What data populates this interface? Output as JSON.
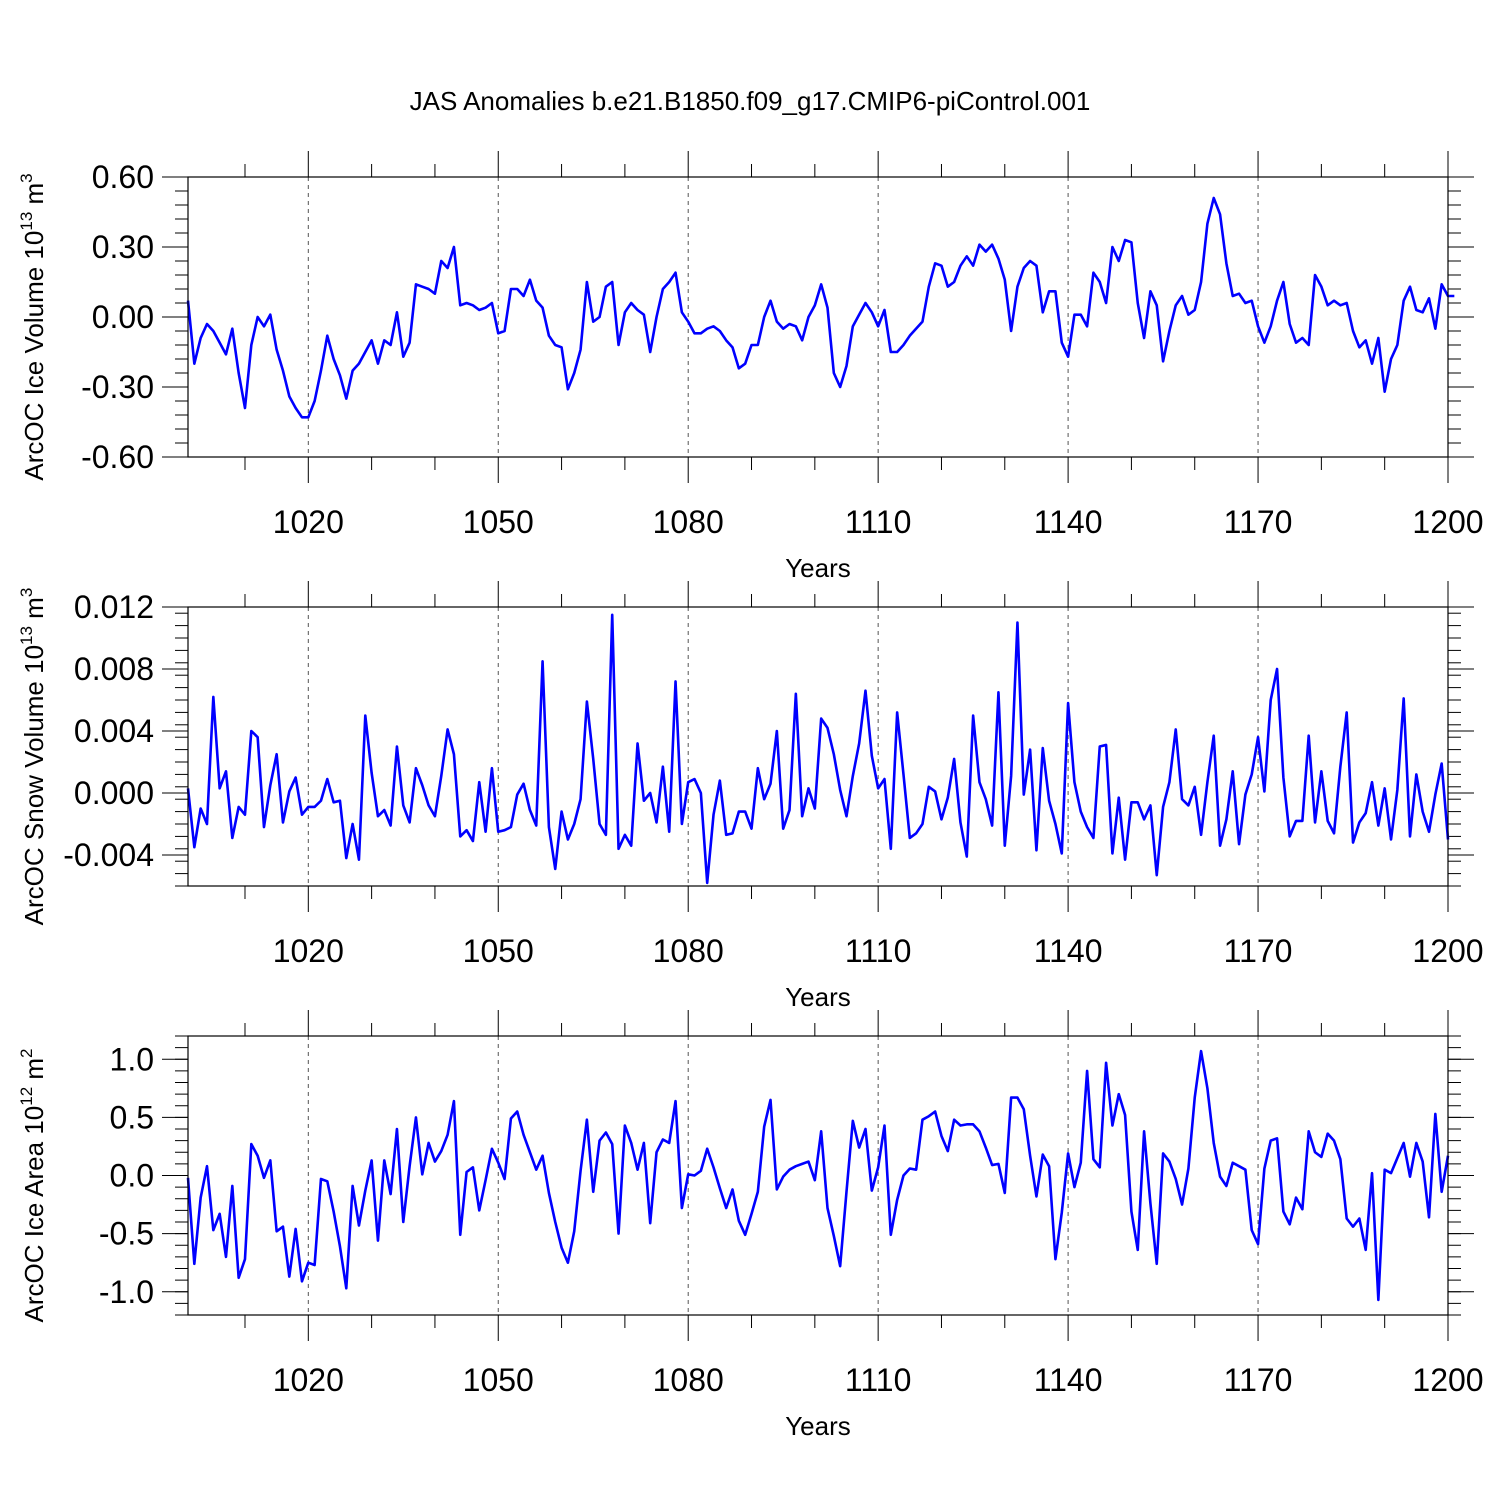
{
  "title": "JAS Anomalies b.e21.B1850.f09_g17.CMIP6-piControl.001",
  "colors": {
    "line": "#0000ff",
    "axis": "#000000",
    "grid": "#555555",
    "background": "#ffffff"
  },
  "chart_data": [
    {
      "type": "line",
      "name": "ice-volume",
      "ylabel_main": "ArcOC Ice Volume 10",
      "ylabel_exp": "13",
      "ylabel_unit": "m",
      "ylabel_unit_exp": "3",
      "xlabel": "Years",
      "xlim": [
        1001,
        1200
      ],
      "ylim": [
        -0.6,
        0.6
      ],
      "xticks": [
        1020,
        1050,
        1080,
        1110,
        1140,
        1170,
        1200
      ],
      "yticks": [
        -0.6,
        -0.3,
        0.0,
        0.3,
        0.6
      ],
      "ytick_labels": [
        "-0.60",
        "-0.30",
        "0.00",
        "0.30",
        "0.60"
      ],
      "grid_x": [
        1020,
        1050,
        1080,
        1110,
        1140,
        1170
      ],
      "x_start": 1001,
      "values": [
        0.07,
        -0.2,
        -0.09,
        -0.03,
        -0.06,
        -0.11,
        -0.16,
        -0.05,
        -0.24,
        -0.39,
        -0.12,
        0.0,
        -0.04,
        0.01,
        -0.14,
        -0.23,
        -0.34,
        -0.39,
        -0.43,
        -0.43,
        -0.36,
        -0.23,
        -0.08,
        -0.18,
        -0.25,
        -0.35,
        -0.23,
        -0.2,
        -0.15,
        -0.1,
        -0.2,
        -0.1,
        -0.12,
        0.02,
        -0.17,
        -0.11,
        0.14,
        0.13,
        0.12,
        0.1,
        0.24,
        0.21,
        0.3,
        0.05,
        0.06,
        0.05,
        0.03,
        0.04,
        0.06,
        -0.07,
        -0.06,
        0.12,
        0.12,
        0.09,
        0.16,
        0.07,
        0.04,
        -0.08,
        -0.12,
        -0.13,
        -0.31,
        -0.24,
        -0.14,
        0.15,
        -0.02,
        0.0,
        0.13,
        0.15,
        -0.12,
        0.02,
        0.06,
        0.03,
        0.01,
        -0.15,
        0.0,
        0.12,
        0.15,
        0.19,
        0.02,
        -0.02,
        -0.07,
        -0.07,
        -0.05,
        -0.04,
        -0.06,
        -0.1,
        -0.13,
        -0.22,
        -0.2,
        -0.12,
        -0.12,
        0.0,
        0.07,
        -0.02,
        -0.05,
        -0.03,
        -0.04,
        -0.1,
        0.0,
        0.05,
        0.14,
        0.04,
        -0.24,
        -0.3,
        -0.21,
        -0.04,
        0.01,
        0.06,
        0.02,
        -0.04,
        0.03,
        -0.15,
        -0.15,
        -0.12,
        -0.08,
        -0.05,
        -0.02,
        0.13,
        0.23,
        0.22,
        0.13,
        0.15,
        0.22,
        0.26,
        0.22,
        0.31,
        0.28,
        0.31,
        0.25,
        0.16,
        -0.06,
        0.13,
        0.21,
        0.24,
        0.22,
        0.02,
        0.11,
        0.11,
        -0.11,
        -0.17,
        0.01,
        0.01,
        -0.04,
        0.19,
        0.15,
        0.06,
        0.3,
        0.24,
        0.33,
        0.32,
        0.06,
        -0.09,
        0.11,
        0.05,
        -0.19,
        -0.06,
        0.05,
        0.09,
        0.01,
        0.03,
        0.15,
        0.4,
        0.51,
        0.44,
        0.23,
        0.09,
        0.1,
        0.06,
        0.07,
        -0.04,
        -0.11,
        -0.04,
        0.07,
        0.15,
        -0.03,
        -0.11,
        -0.09,
        -0.12,
        0.18,
        0.13,
        0.05,
        0.07,
        0.05,
        0.06,
        -0.06,
        -0.13,
        -0.1,
        -0.2,
        -0.09,
        -0.32,
        -0.18,
        -0.12,
        0.07,
        0.13,
        0.03,
        0.02,
        0.08,
        -0.05,
        0.14,
        0.09,
        0.09
      ]
    },
    {
      "type": "line",
      "name": "snow-volume",
      "ylabel_main": "ArcOC Snow Volume 10",
      "ylabel_exp": "13",
      "ylabel_unit": "m",
      "ylabel_unit_exp": "3",
      "xlabel": "Years",
      "xlim": [
        1001,
        1200
      ],
      "ylim": [
        -0.006,
        0.012
      ],
      "xticks": [
        1020,
        1050,
        1080,
        1110,
        1140,
        1170,
        1200
      ],
      "yticks": [
        -0.004,
        0.0,
        0.004,
        0.008,
        0.012
      ],
      "ytick_labels": [
        "-0.004",
        "0.000",
        "0.004",
        "0.008",
        "0.012"
      ],
      "grid_x": [
        1020,
        1050,
        1080,
        1110,
        1140,
        1170
      ],
      "x_start": 1001,
      "values": [
        0.0003,
        -0.0035,
        -0.001,
        -0.002,
        0.0062,
        0.0003,
        0.0014,
        -0.0029,
        -0.0009,
        -0.0014,
        0.004,
        0.0036,
        -0.0022,
        0.0005,
        0.0025,
        -0.0019,
        0.0001,
        0.001,
        -0.0014,
        -0.0009,
        -0.0009,
        -0.0005,
        0.0009,
        -0.0006,
        -0.0005,
        -0.0042,
        -0.002,
        -0.0043,
        0.005,
        0.0013,
        -0.0015,
        -0.0011,
        -0.0021,
        0.003,
        -0.0008,
        -0.0019,
        0.0016,
        0.0005,
        -0.0008,
        -0.0015,
        0.0011,
        0.0041,
        0.0025,
        -0.0028,
        -0.0024,
        -0.0031,
        0.0007,
        -0.0025,
        0.0016,
        -0.0025,
        -0.0024,
        -0.0022,
        -0.0001,
        0.0006,
        -0.0011,
        -0.0021,
        0.0085,
        -0.0022,
        -0.0049,
        -0.0012,
        -0.003,
        -0.002,
        -0.0004,
        0.0059,
        0.0022,
        -0.002,
        -0.0027,
        0.0115,
        -0.0036,
        -0.0027,
        -0.0034,
        0.0032,
        -0.0005,
        0.0,
        -0.0019,
        0.0017,
        -0.0025,
        0.0072,
        -0.002,
        0.0007,
        0.0009,
        0.0,
        -0.0058,
        -0.0014,
        0.0008,
        -0.0027,
        -0.0026,
        -0.0012,
        -0.0012,
        -0.0023,
        0.0016,
        -0.0004,
        0.0006,
        0.004,
        -0.0023,
        -0.0011,
        0.0064,
        -0.0015,
        0.0003,
        -0.001,
        0.0048,
        0.0042,
        0.0025,
        0.0002,
        -0.0015,
        0.0011,
        0.0032,
        0.0066,
        0.0024,
        0.0003,
        0.0009,
        -0.0036,
        0.0052,
        0.0012,
        -0.0029,
        -0.0026,
        -0.002,
        0.0004,
        0.0001,
        -0.0017,
        -0.0003,
        0.0022,
        -0.0019,
        -0.0041,
        0.005,
        0.0007,
        -0.0004,
        -0.0021,
        0.0065,
        -0.0034,
        0.0011,
        0.011,
        -0.0001,
        0.0028,
        -0.0037,
        0.0029,
        -0.0005,
        -0.002,
        -0.0039,
        0.0058,
        0.0007,
        -0.0012,
        -0.0022,
        -0.0029,
        0.003,
        0.0031,
        -0.0039,
        -0.0003,
        -0.0043,
        -0.0006,
        -0.0006,
        -0.0017,
        -0.0008,
        -0.0053,
        -0.0009,
        0.0007,
        0.0041,
        -0.0004,
        -0.0008,
        0.0004,
        -0.0027,
        0.0007,
        0.0037,
        -0.0034,
        -0.0017,
        0.0014,
        -0.0033,
        -0.0001,
        0.0012,
        0.0036,
        0.0001,
        0.006,
        0.008,
        0.001,
        -0.0028,
        -0.0018,
        -0.0018,
        0.0037,
        -0.0019,
        0.0014,
        -0.0018,
        -0.0026,
        0.0017,
        0.0052,
        -0.0032,
        -0.0019,
        -0.0013,
        0.0007,
        -0.0021,
        0.0003,
        -0.003,
        0.0002,
        0.0061,
        -0.0028,
        0.0012,
        -0.0012,
        -0.0025,
        -0.0001,
        0.0019,
        -0.003
      ]
    },
    {
      "type": "line",
      "name": "ice-area",
      "ylabel_main": "ArcOC Ice Area 10",
      "ylabel_exp": "12",
      "ylabel_unit": "m",
      "ylabel_unit_exp": "2",
      "xlabel": "Years",
      "xlim": [
        1001,
        1200
      ],
      "ylim": [
        -1.2,
        1.2
      ],
      "xticks": [
        1020,
        1050,
        1080,
        1110,
        1140,
        1170,
        1200
      ],
      "yticks": [
        -1.0,
        -0.5,
        0.0,
        0.5,
        1.0
      ],
      "ytick_labels": [
        "-1.0",
        "-0.5",
        "0.0",
        "0.5",
        "1.0"
      ],
      "grid_x": [
        1020,
        1050,
        1080,
        1110,
        1140,
        1170
      ],
      "x_start": 1001,
      "values": [
        -0.02,
        -0.76,
        -0.19,
        0.08,
        -0.47,
        -0.33,
        -0.7,
        -0.09,
        -0.88,
        -0.72,
        0.27,
        0.17,
        -0.02,
        0.13,
        -0.48,
        -0.44,
        -0.87,
        -0.46,
        -0.91,
        -0.75,
        -0.77,
        -0.03,
        -0.05,
        -0.31,
        -0.61,
        -0.97,
        -0.09,
        -0.43,
        -0.13,
        0.13,
        -0.56,
        0.13,
        -0.16,
        0.4,
        -0.4,
        0.08,
        0.5,
        0.01,
        0.28,
        0.12,
        0.21,
        0.35,
        0.64,
        -0.51,
        0.03,
        0.07,
        -0.3,
        -0.04,
        0.23,
        0.11,
        -0.03,
        0.49,
        0.55,
        0.35,
        0.2,
        0.05,
        0.17,
        -0.15,
        -0.4,
        -0.62,
        -0.75,
        -0.48,
        0.04,
        0.48,
        -0.14,
        0.3,
        0.37,
        0.27,
        -0.5,
        0.43,
        0.28,
        0.05,
        0.28,
        -0.41,
        0.2,
        0.31,
        0.28,
        0.64,
        -0.28,
        0.01,
        0.0,
        0.04,
        0.23,
        0.07,
        -0.11,
        -0.28,
        -0.12,
        -0.39,
        -0.51,
        -0.33,
        -0.14,
        0.42,
        0.65,
        -0.12,
        -0.01,
        0.05,
        0.08,
        0.1,
        0.12,
        -0.04,
        0.38,
        -0.28,
        -0.52,
        -0.78,
        -0.14,
        0.47,
        0.24,
        0.4,
        -0.13,
        0.07,
        0.43,
        -0.51,
        -0.21,
        0.0,
        0.06,
        0.05,
        0.48,
        0.51,
        0.55,
        0.34,
        0.21,
        0.48,
        0.43,
        0.44,
        0.44,
        0.38,
        0.24,
        0.09,
        0.1,
        -0.15,
        0.67,
        0.67,
        0.57,
        0.17,
        -0.18,
        0.18,
        0.08,
        -0.72,
        -0.32,
        0.19,
        -0.1,
        0.11,
        0.9,
        0.14,
        0.07,
        0.97,
        0.43,
        0.7,
        0.52,
        -0.31,
        -0.64,
        0.38,
        -0.24,
        -0.76,
        0.19,
        0.12,
        -0.03,
        -0.25,
        0.06,
        0.67,
        1.07,
        0.75,
        0.28,
        -0.01,
        -0.09,
        0.11,
        0.08,
        0.05,
        -0.47,
        -0.59,
        0.06,
        0.3,
        0.32,
        -0.31,
        -0.42,
        -0.19,
        -0.29,
        0.38,
        0.2,
        0.16,
        0.36,
        0.3,
        0.14,
        -0.37,
        -0.44,
        -0.37,
        -0.64,
        0.02,
        -1.07,
        0.05,
        0.02,
        0.15,
        0.28,
        -0.01,
        0.28,
        0.12,
        -0.36,
        0.53,
        -0.14,
        0.17
      ]
    }
  ]
}
